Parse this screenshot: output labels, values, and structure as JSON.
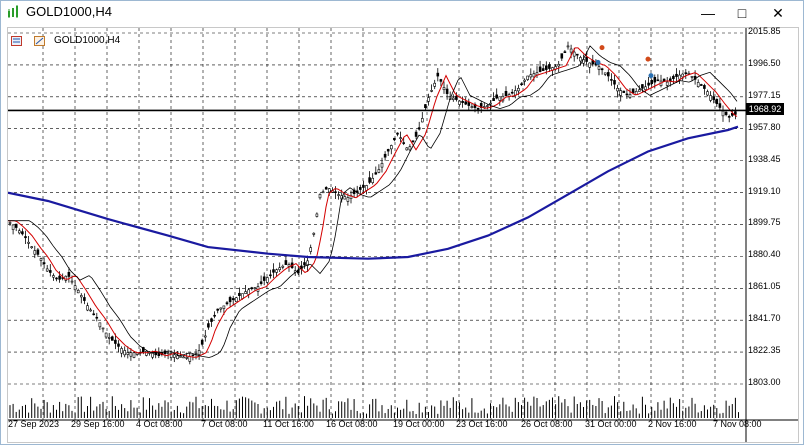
{
  "window": {
    "title": "GOLD1000,H4",
    "minimize_icon": "minimize-icon",
    "maximize_icon": "maximize-icon",
    "close_icon": "close-icon"
  },
  "chart": {
    "symbol_label": "GOLD1000,H4",
    "current_price": "1968.92",
    "colors": {
      "candle": "#000000",
      "ma_fast": "#d40000",
      "ma_mid": "#000000",
      "ma_slow": "#1a1aa0",
      "grid": "#000000",
      "hline": "#000000"
    }
  },
  "chart_data": {
    "type": "candlestick",
    "price_ticks": [
      "2015.85",
      "1996.50",
      "1977.15",
      "1957.80",
      "1938.45",
      "1919.10",
      "1899.75",
      "1880.40",
      "1861.05",
      "1841.70",
      "1822.35",
      "1803.00"
    ],
    "time_ticks": [
      "27 Sep 2023",
      "29 Sep 16:00",
      "4 Oct 08:00",
      "7 Oct 08:00",
      "11 Oct 16:00",
      "16 Oct 08:00",
      "19 Oct 00:00",
      "23 Oct 16:00",
      "26 Oct 08:00",
      "31 Oct 00:00",
      "2 Nov 16:00",
      "7 Nov 08:00"
    ],
    "horizontal_line": 1968.92,
    "ylim": [
      1803.0,
      2015.85
    ]
  }
}
